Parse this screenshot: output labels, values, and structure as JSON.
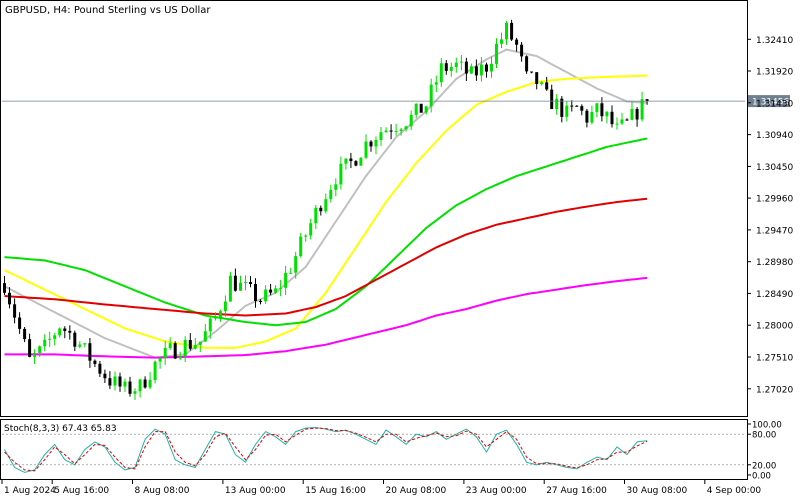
{
  "chart_data": {
    "type": "candlestick",
    "symbol": "GBPUSD",
    "timeframe": "H4",
    "description": "Pound Sterling vs US Dollar",
    "current_price": "1.31456",
    "current_price_value": 1.31456,
    "ylim": [
      1.266,
      1.33
    ],
    "y_ticks": [
      "1.32410",
      "1.31920",
      "1.31430",
      "1.30940",
      "1.30450",
      "1.29960",
      "1.29470",
      "1.28980",
      "1.28490",
      "1.28000",
      "1.27510",
      "1.27020"
    ],
    "x_tick_labels": [
      "1 Aug 2024",
      "5 Aug 16:00",
      "8 Aug 08:00",
      "13 Aug 00:00",
      "15 Aug 16:00",
      "20 Aug 08:00",
      "23 Aug 00:00",
      "27 Aug 16:00",
      "30 Aug 08:00",
      "4 Sep 00:00"
    ],
    "x_tick_index": [
      0,
      10,
      26,
      44,
      60,
      76,
      92,
      108,
      124,
      140
    ],
    "n_bars": 148,
    "colors": {
      "bull": "#00e000",
      "bear": "#000000",
      "ma_silver": "#c0c0c0",
      "ma_yellow": "#ffff00",
      "ma_green": "#00e000",
      "ma_red": "#e00000",
      "ma_magenta": "#ff00ff",
      "stoch_main": "#20b2aa",
      "stoch_signal": "#e00000",
      "price_line": "#708090"
    },
    "anchors": [
      [
        0,
        1.2865
      ],
      [
        5,
        1.2745
      ],
      [
        8,
        1.2765
      ],
      [
        11,
        1.28
      ],
      [
        14,
        1.278
      ],
      [
        18,
        1.274
      ],
      [
        21,
        1.2715
      ],
      [
        24,
        1.27
      ],
      [
        27,
        1.2705
      ],
      [
        30,
        1.274
      ],
      [
        33,
        1.276
      ],
      [
        36,
        1.277
      ],
      [
        39,
        1.2775
      ],
      [
        42,
        1.281
      ],
      [
        45,
        1.287
      ],
      [
        48,
        1.2855
      ],
      [
        51,
        1.284
      ],
      [
        54,
        1.285
      ],
      [
        57,
        1.289
      ],
      [
        60,
        1.294
      ],
      [
        63,
        1.299
      ],
      [
        66,
        1.303
      ],
      [
        69,
        1.305
      ],
      [
        72,
        1.308
      ],
      [
        75,
        1.31
      ],
      [
        78,
        1.311
      ],
      [
        81,
        1.312
      ],
      [
        84,
        1.314
      ],
      [
        87,
        1.3195
      ],
      [
        90,
        1.32
      ],
      [
        93,
        1.3185
      ],
      [
        96,
        1.32
      ],
      [
        98,
        1.323
      ],
      [
        100,
        1.3255
      ],
      [
        102,
        1.323
      ],
      [
        104,
        1.318
      ],
      [
        106,
        1.3175
      ],
      [
        108,
        1.315
      ],
      [
        110,
        1.314
      ],
      [
        112,
        1.3125
      ],
      [
        114,
        1.3135
      ],
      [
        116,
        1.312
      ],
      [
        118,
        1.313
      ],
      [
        120,
        1.312
      ],
      [
        122,
        1.31
      ],
      [
        124,
        1.311
      ],
      [
        126,
        1.313
      ],
      [
        128,
        1.3145
      ]
    ],
    "moving_averages": [
      {
        "color_key": "ma_silver",
        "points": [
          [
            0,
            1.286
          ],
          [
            10,
            1.282
          ],
          [
            20,
            1.278
          ],
          [
            30,
            1.275
          ],
          [
            36,
            1.2755
          ],
          [
            42,
            1.279
          ],
          [
            48,
            1.283
          ],
          [
            54,
            1.285
          ],
          [
            60,
            1.289
          ],
          [
            66,
            1.296
          ],
          [
            72,
            1.303
          ],
          [
            78,
            1.309
          ],
          [
            84,
            1.313
          ],
          [
            90,
            1.318
          ],
          [
            96,
            1.321
          ],
          [
            100,
            1.3225
          ],
          [
            106,
            1.3215
          ],
          [
            112,
            1.319
          ],
          [
            118,
            1.3165
          ],
          [
            124,
            1.3145
          ],
          [
            128,
            1.3143
          ]
        ]
      },
      {
        "color_key": "ma_yellow",
        "points": [
          [
            0,
            1.2885
          ],
          [
            8,
            1.2855
          ],
          [
            16,
            1.2825
          ],
          [
            24,
            1.2795
          ],
          [
            32,
            1.2775
          ],
          [
            40,
            1.2765
          ],
          [
            46,
            1.2765
          ],
          [
            52,
            1.2775
          ],
          [
            58,
            1.2795
          ],
          [
            64,
            1.285
          ],
          [
            70,
            1.292
          ],
          [
            76,
            1.299
          ],
          [
            82,
            1.305
          ],
          [
            88,
            1.31
          ],
          [
            94,
            1.314
          ],
          [
            100,
            1.316
          ],
          [
            106,
            1.3175
          ],
          [
            112,
            1.318
          ],
          [
            120,
            1.3183
          ],
          [
            128,
            1.3185
          ]
        ]
      },
      {
        "color_key": "ma_green",
        "points": [
          [
            0,
            1.2905
          ],
          [
            8,
            1.29
          ],
          [
            16,
            1.2885
          ],
          [
            24,
            1.286
          ],
          [
            32,
            1.2835
          ],
          [
            40,
            1.2815
          ],
          [
            48,
            1.2805
          ],
          [
            54,
            1.28
          ],
          [
            60,
            1.2805
          ],
          [
            66,
            1.2825
          ],
          [
            72,
            1.286
          ],
          [
            78,
            1.2905
          ],
          [
            84,
            1.295
          ],
          [
            90,
            1.2985
          ],
          [
            96,
            1.301
          ],
          [
            102,
            1.303
          ],
          [
            108,
            1.3045
          ],
          [
            114,
            1.306
          ],
          [
            120,
            1.3075
          ],
          [
            128,
            1.3088
          ]
        ]
      },
      {
        "color_key": "ma_red",
        "points": [
          [
            0,
            1.2845
          ],
          [
            10,
            1.284
          ],
          [
            20,
            1.2832
          ],
          [
            30,
            1.2825
          ],
          [
            40,
            1.2818
          ],
          [
            48,
            1.2815
          ],
          [
            56,
            1.2818
          ],
          [
            62,
            1.2828
          ],
          [
            68,
            1.2845
          ],
          [
            74,
            1.287
          ],
          [
            80,
            1.2895
          ],
          [
            86,
            1.292
          ],
          [
            92,
            1.294
          ],
          [
            98,
            1.2955
          ],
          [
            104,
            1.2965
          ],
          [
            110,
            1.2975
          ],
          [
            116,
            1.2983
          ],
          [
            122,
            1.299
          ],
          [
            128,
            1.2995
          ]
        ]
      },
      {
        "color_key": "ma_magenta",
        "points": [
          [
            0,
            1.2755
          ],
          [
            10,
            1.2755
          ],
          [
            20,
            1.2752
          ],
          [
            30,
            1.275
          ],
          [
            40,
            1.2752
          ],
          [
            48,
            1.2754
          ],
          [
            56,
            1.276
          ],
          [
            64,
            1.277
          ],
          [
            72,
            1.2785
          ],
          [
            80,
            1.28
          ],
          [
            86,
            1.2815
          ],
          [
            92,
            1.2825
          ],
          [
            98,
            1.2838
          ],
          [
            104,
            1.2848
          ],
          [
            110,
            1.2855
          ],
          [
            116,
            1.2862
          ],
          [
            122,
            1.2868
          ],
          [
            128,
            1.2873
          ]
        ]
      }
    ],
    "stochastic": {
      "label": "Stoch(8,3,3) 67.43 65.83",
      "levels": [
        "100.00",
        "80.00",
        "20.00",
        "0.00"
      ],
      "level_values": [
        100,
        80,
        20,
        0
      ],
      "main": [
        [
          0,
          50
        ],
        [
          2,
          15
        ],
        [
          4,
          5
        ],
        [
          6,
          10
        ],
        [
          8,
          40
        ],
        [
          10,
          60
        ],
        [
          12,
          30
        ],
        [
          14,
          20
        ],
        [
          16,
          50
        ],
        [
          18,
          65
        ],
        [
          20,
          55
        ],
        [
          22,
          25
        ],
        [
          24,
          10
        ],
        [
          26,
          15
        ],
        [
          28,
          70
        ],
        [
          30,
          90
        ],
        [
          32,
          80
        ],
        [
          34,
          30
        ],
        [
          36,
          20
        ],
        [
          38,
          15
        ],
        [
          40,
          50
        ],
        [
          42,
          85
        ],
        [
          44,
          80
        ],
        [
          46,
          40
        ],
        [
          48,
          25
        ],
        [
          50,
          60
        ],
        [
          52,
          85
        ],
        [
          54,
          75
        ],
        [
          56,
          60
        ],
        [
          58,
          85
        ],
        [
          60,
          92
        ],
        [
          62,
          93
        ],
        [
          64,
          90
        ],
        [
          66,
          85
        ],
        [
          68,
          88
        ],
        [
          70,
          80
        ],
        [
          72,
          70
        ],
        [
          74,
          60
        ],
        [
          76,
          88
        ],
        [
          78,
          75
        ],
        [
          80,
          60
        ],
        [
          82,
          80
        ],
        [
          84,
          75
        ],
        [
          86,
          85
        ],
        [
          88,
          70
        ],
        [
          90,
          80
        ],
        [
          92,
          90
        ],
        [
          94,
          75
        ],
        [
          96,
          45
        ],
        [
          98,
          80
        ],
        [
          100,
          88
        ],
        [
          102,
          60
        ],
        [
          104,
          25
        ],
        [
          106,
          20
        ],
        [
          108,
          25
        ],
        [
          110,
          20
        ],
        [
          112,
          15
        ],
        [
          114,
          12
        ],
        [
          116,
          25
        ],
        [
          118,
          35
        ],
        [
          120,
          30
        ],
        [
          122,
          55
        ],
        [
          124,
          40
        ],
        [
          126,
          65
        ],
        [
          128,
          67
        ]
      ],
      "signal": [
        [
          0,
          45
        ],
        [
          2,
          25
        ],
        [
          4,
          10
        ],
        [
          6,
          8
        ],
        [
          8,
          30
        ],
        [
          10,
          55
        ],
        [
          12,
          40
        ],
        [
          14,
          22
        ],
        [
          16,
          40
        ],
        [
          18,
          60
        ],
        [
          20,
          58
        ],
        [
          22,
          35
        ],
        [
          24,
          15
        ],
        [
          26,
          12
        ],
        [
          28,
          55
        ],
        [
          30,
          85
        ],
        [
          32,
          85
        ],
        [
          34,
          45
        ],
        [
          36,
          25
        ],
        [
          38,
          18
        ],
        [
          40,
          40
        ],
        [
          42,
          75
        ],
        [
          44,
          82
        ],
        [
          46,
          55
        ],
        [
          48,
          30
        ],
        [
          50,
          50
        ],
        [
          52,
          78
        ],
        [
          54,
          80
        ],
        [
          56,
          65
        ],
        [
          58,
          78
        ],
        [
          60,
          90
        ],
        [
          62,
          92
        ],
        [
          64,
          91
        ],
        [
          66,
          87
        ],
        [
          68,
          87
        ],
        [
          70,
          82
        ],
        [
          72,
          74
        ],
        [
          74,
          65
        ],
        [
          76,
          80
        ],
        [
          78,
          80
        ],
        [
          80,
          65
        ],
        [
          82,
          72
        ],
        [
          84,
          77
        ],
        [
          86,
          82
        ],
        [
          88,
          75
        ],
        [
          90,
          77
        ],
        [
          92,
          86
        ],
        [
          94,
          80
        ],
        [
          96,
          55
        ],
        [
          98,
          70
        ],
        [
          100,
          85
        ],
        [
          102,
          70
        ],
        [
          104,
          35
        ],
        [
          106,
          22
        ],
        [
          108,
          22
        ],
        [
          110,
          22
        ],
        [
          112,
          17
        ],
        [
          114,
          14
        ],
        [
          116,
          20
        ],
        [
          118,
          30
        ],
        [
          120,
          32
        ],
        [
          122,
          45
        ],
        [
          124,
          45
        ],
        [
          126,
          57
        ],
        [
          128,
          66
        ]
      ]
    }
  }
}
